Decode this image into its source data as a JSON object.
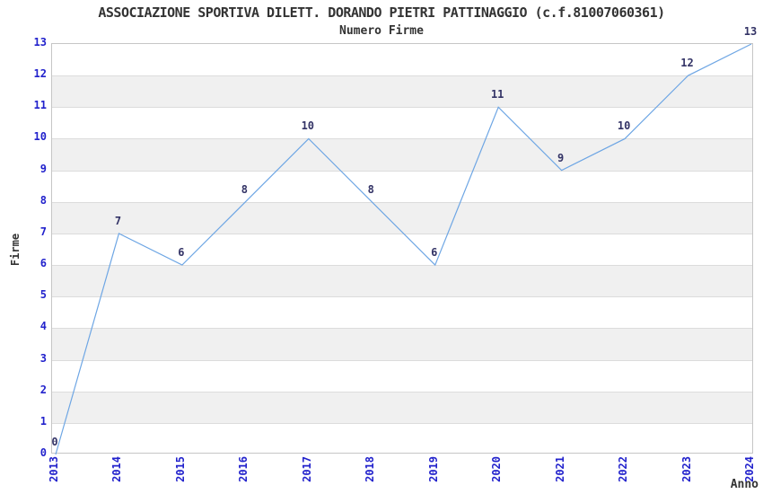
{
  "chart": {
    "colors": {
      "line": "#6ea6e4",
      "tick_label": "#2222cc",
      "point_label": "#333366",
      "text": "#333333",
      "band": "#f0f0f0",
      "grid": "#dcdcdc",
      "border": "#c6c6c6",
      "background": "#ffffff"
    }
  },
  "chart_data": {
    "type": "line",
    "title": "ASSOCIAZIONE SPORTIVA DILETT. DORANDO PIETRI PATTINAGGIO (c.f.81007060361)",
    "subtitle": "Numero Firme",
    "xlabel": "Anno",
    "ylabel": "Firme",
    "categories": [
      "2013",
      "2014",
      "2015",
      "2016",
      "2017",
      "2018",
      "2019",
      "2020",
      "2021",
      "2022",
      "2023",
      "2024"
    ],
    "values": [
      0,
      7,
      6,
      8,
      10,
      8,
      6,
      11,
      9,
      10,
      12,
      13
    ],
    "ylim": [
      0,
      13
    ],
    "ytick_step": 1,
    "grid": true,
    "banded_background": true,
    "point_labels": true,
    "legend": "none"
  }
}
